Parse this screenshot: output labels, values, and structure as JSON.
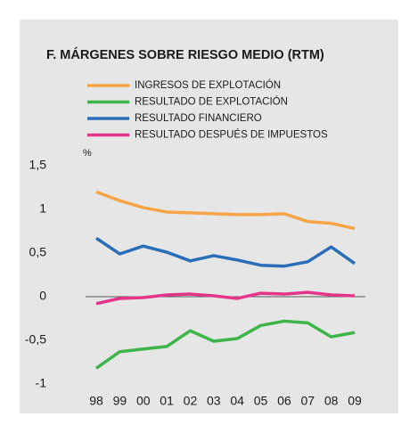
{
  "chart_data": {
    "type": "line",
    "title": "F. MÁRGENES SOBRE RIESGO MEDIO (RTM)",
    "y_unit": "%",
    "categories": [
      "98",
      "99",
      "00",
      "01",
      "02",
      "03",
      "04",
      "05",
      "06",
      "07",
      "08",
      "09"
    ],
    "series": [
      {
        "name": "INGRESOS DE EXPLOTACIÓN",
        "color": "#f7a446",
        "values": [
          1.2,
          1.1,
          1.02,
          0.97,
          0.96,
          0.95,
          0.94,
          0.94,
          0.95,
          0.86,
          0.84,
          0.78
        ]
      },
      {
        "name": "RESULTADO DE EXPLOTACIÓN",
        "color": "#3db54a",
        "values": [
          -0.82,
          -0.63,
          -0.6,
          -0.57,
          -0.39,
          -0.51,
          -0.48,
          -0.33,
          -0.28,
          -0.3,
          -0.46,
          -0.41
        ]
      },
      {
        "name": "RESULTADO FINANCIERO",
        "color": "#2a6db9",
        "values": [
          0.67,
          0.49,
          0.58,
          0.51,
          0.41,
          0.47,
          0.42,
          0.36,
          0.35,
          0.4,
          0.57,
          0.38
        ]
      },
      {
        "name": "RESULTADO DESPUÉS DE IMPUESTOS",
        "color": "#e5358b",
        "values": [
          -0.08,
          -0.02,
          -0.01,
          0.02,
          0.03,
          0.01,
          -0.02,
          0.04,
          0.03,
          0.05,
          0.02,
          0.01
        ]
      }
    ],
    "ylim": [
      -1,
      1.5
    ],
    "yticks": [
      {
        "value": 1.5,
        "label": "1,5"
      },
      1,
      {
        "value": 0.5,
        "label": "0,5"
      },
      0,
      {
        "value": -0.5,
        "label": "-0,5"
      },
      -1
    ]
  }
}
